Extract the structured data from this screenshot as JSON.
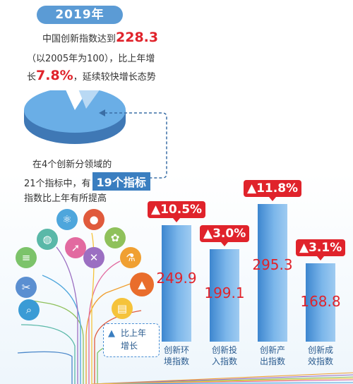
{
  "header": {
    "year": "2019年",
    "line1_prefix": "中国创新指数达到",
    "line1_value": "228.3",
    "line2": "（以2005年为100），比上年增",
    "line3_prefix": "长",
    "line3_value": "7.8%",
    "line3_suffix": "，延续较快增长态势"
  },
  "pie_note": {
    "line1": "在4个创新分领域的",
    "line2_prefix": "21个指标中，有",
    "line2_tag": "19个指标",
    "line3": "指数比上年有所提高"
  },
  "legend": {
    "symbol": "▲",
    "text_line1": "比上年",
    "text_line2": "增长"
  },
  "colors": {
    "accent": "#5b9bd5",
    "bar": "#5ea5e4",
    "increase": "#e0232b"
  },
  "icons": [
    "scissors-icon",
    "magnifier-icon",
    "abacus-icon",
    "globe-icon",
    "atom-icon",
    "rocket-icon",
    "apple-icon",
    "palette-icon",
    "ruler-icon",
    "flask-icon",
    "graduation-cap-icon",
    "notepad-icon"
  ],
  "chart_data": {
    "type": "bar",
    "categories": [
      "创新环境指数",
      "创新投入指数",
      "创新产出指数",
      "创新成效指数"
    ],
    "category_lines": [
      [
        "创新环",
        "境指数"
      ],
      [
        "创新投",
        "入指数"
      ],
      [
        "创新产",
        "出指数"
      ],
      [
        "创新成",
        "效指数"
      ]
    ],
    "values": [
      249.9,
      199.1,
      295.3,
      168.8
    ],
    "value_labels": [
      "249.9",
      "199.1",
      "295.3",
      "168.8"
    ],
    "growth_labels": [
      "▲10.5%",
      "▲3.0%",
      "▲11.8%",
      "▲3.1%"
    ],
    "growth": [
      10.5,
      3.0,
      11.8,
      3.1
    ]
  }
}
